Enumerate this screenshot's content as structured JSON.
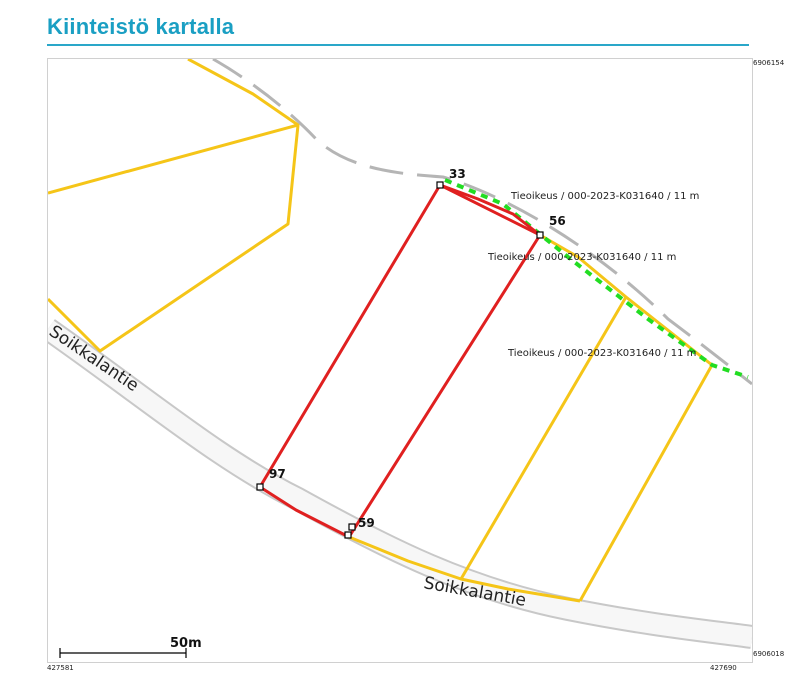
{
  "page": {
    "title": "Kiinteistö kartalla"
  },
  "map": {
    "road_name": "Soikkalantie",
    "easement_label": "Tieoikeus / 000-2023-K031640 / 11 m",
    "vertex_labels": [
      "33",
      "56",
      "97",
      "59"
    ],
    "scale_bar_label": "50m",
    "coordinates": {
      "north": "6906154",
      "south": "6906018",
      "west": "427581",
      "east": "427690"
    },
    "colors": {
      "parcel_boundary": "#f5c518",
      "selected_parcel": "#e02020",
      "easement": "#22dd22",
      "road_edge": "#c8c8c8",
      "road_fill": "#f7f7f7",
      "path_dash": "#b5b5b5",
      "title": "#1a9fc3"
    }
  }
}
